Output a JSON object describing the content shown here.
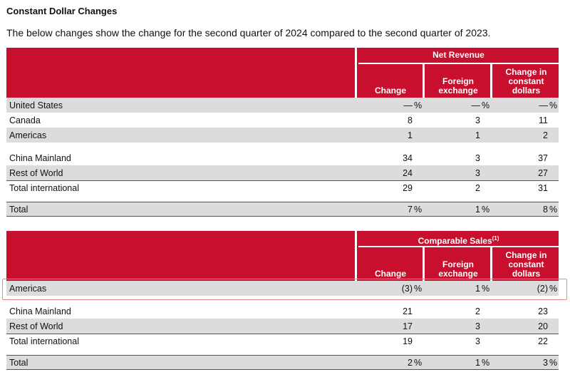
{
  "title": "Constant Dollar Changes",
  "description": "The below changes show the change for the second quarter of 2024 compared to the second quarter of 2023.",
  "columns": [
    "Change",
    "Foreign exchange",
    "Change in constant dollars"
  ],
  "net_revenue": {
    "group_label": "Net Revenue",
    "rows": [
      {
        "label": "United States",
        "values": [
          "—",
          "—",
          "—"
        ],
        "suffix": "%",
        "shade": "gray"
      },
      {
        "label": "Canada",
        "values": [
          "8",
          "3",
          "11"
        ],
        "suffix": "",
        "shade": "white"
      },
      {
        "label": "Americas",
        "values": [
          "1",
          "1",
          "2"
        ],
        "suffix": "",
        "shade": "gray"
      },
      {
        "label": "China Mainland",
        "values": [
          "34",
          "3",
          "37"
        ],
        "suffix": "",
        "shade": "white"
      },
      {
        "label": "Rest of World",
        "values": [
          "24",
          "3",
          "27"
        ],
        "suffix": "",
        "shade": "gray"
      },
      {
        "label": "Total international",
        "values": [
          "29",
          "2",
          "31"
        ],
        "suffix": "",
        "shade": "white"
      },
      {
        "label": "Total",
        "values": [
          "7",
          "1",
          "8"
        ],
        "suffix": "%",
        "shade": "gray"
      }
    ]
  },
  "comparable_sales": {
    "group_label": "Comparable Sales",
    "footnote": "(1)",
    "rows": [
      {
        "label": "Americas",
        "values": [
          "(3)",
          "1",
          "(2)"
        ],
        "suffixes": [
          "%",
          "%",
          "%"
        ],
        "shade": "gray",
        "highlighted": true
      },
      {
        "label": "China Mainland",
        "values": [
          "21",
          "2",
          "23"
        ],
        "suffix": "",
        "shade": "white"
      },
      {
        "label": "Rest of World",
        "values": [
          "17",
          "3",
          "20"
        ],
        "suffix": "",
        "shade": "gray"
      },
      {
        "label": "Total international",
        "values": [
          "19",
          "3",
          "22"
        ],
        "suffix": "",
        "shade": "white"
      },
      {
        "label": "Total",
        "values": [
          "2",
          "1",
          "3"
        ],
        "suffix": "%",
        "shade": "gray"
      }
    ]
  },
  "colors": {
    "header_red": "#c8102e",
    "row_gray": "#dcdcdc",
    "highlight_border": "#e88888"
  }
}
